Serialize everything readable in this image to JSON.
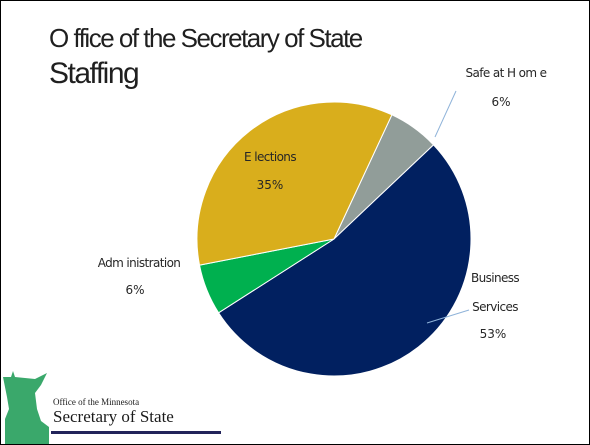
{
  "slide": {
    "title_line1": "O ffice of the Secretary of State",
    "title_line2": "Staffing"
  },
  "footer": {
    "org_small": "Office of the Minnesota",
    "org_big": "Secretary of State",
    "logo_color": "#3aa86b"
  },
  "chart_data": {
    "type": "pie",
    "title": "",
    "slices": [
      {
        "label": "Safe at H om e",
        "value": 6,
        "value_label": "6%",
        "color": "#919d99"
      },
      {
        "label": "Business Services",
        "label_lines": [
          "Business",
          "Services"
        ],
        "value": 53,
        "value_label": "53%",
        "color": "#012060"
      },
      {
        "label": "Adm inistration",
        "value": 6,
        "value_label": "6%",
        "color": "#00b04f"
      },
      {
        "label": "E lections",
        "value": 35,
        "value_label": "35%",
        "color": "#d9ae1c"
      }
    ],
    "start_angle_deg": 25,
    "direction": "clockwise",
    "legend": "none",
    "data_labels": "outside-with-leaders-and-inside"
  }
}
